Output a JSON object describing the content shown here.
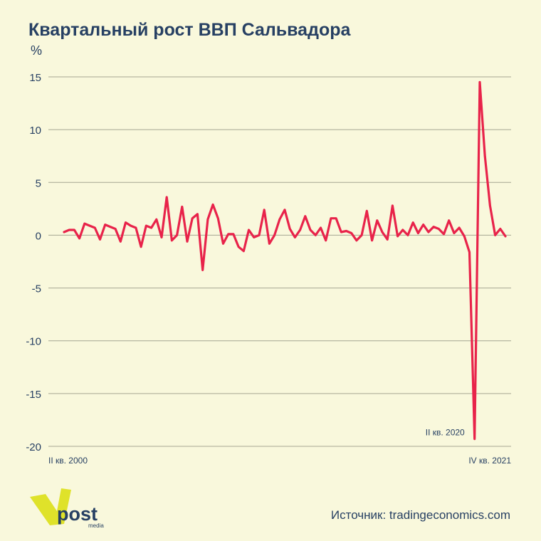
{
  "title": "Квартальный рост ВВП Сальвадора",
  "unit": "%",
  "source": "Источник: tradingeconomics.com",
  "logo": {
    "word": "post",
    "sub": "media",
    "accent": "#dfe22a",
    "text_color": "#274063"
  },
  "colors": {
    "line": "#e8234a",
    "grid": "#a6a692",
    "text": "#274063",
    "background": "#f9f8dc"
  },
  "chart_data": {
    "type": "line",
    "title": "Квартальный рост ВВП Сальвадора",
    "ylabel": "%",
    "ylim": [
      -20,
      15
    ],
    "yticks": [
      15,
      10,
      5,
      0,
      -5,
      -10,
      -15,
      -20
    ],
    "grid": true,
    "legend": "none",
    "x_labels": [
      {
        "text": "II кв. 2000",
        "index": 0
      },
      {
        "text": "IV кв. 2021",
        "index": 86
      }
    ],
    "annotations": [
      {
        "text": "II кв. 2020",
        "index": 80
      }
    ],
    "series": [
      {
        "values": [
          0.3,
          0.5,
          0.5,
          -0.3,
          1.1,
          0.9,
          0.7,
          -0.4,
          1.0,
          0.8,
          0.6,
          -0.6,
          1.2,
          0.9,
          0.7,
          -1.1,
          0.9,
          0.7,
          1.5,
          -0.2,
          3.6,
          -0.5,
          0.0,
          2.7,
          -0.6,
          1.6,
          2.0,
          -3.3,
          1.5,
          2.9,
          1.6,
          -0.8,
          0.1,
          0.1,
          -1.1,
          -1.5,
          0.5,
          -0.2,
          0.0,
          2.4,
          -0.8,
          0.0,
          1.5,
          2.4,
          0.6,
          -0.2,
          0.5,
          1.8,
          0.5,
          0.0,
          0.7,
          -0.5,
          1.6,
          1.6,
          0.3,
          0.4,
          0.2,
          -0.5,
          0.0,
          2.3,
          -0.5,
          1.4,
          0.3,
          -0.4,
          2.8,
          -0.1,
          0.5,
          0.0,
          1.2,
          0.2,
          1.0,
          0.3,
          0.8,
          0.6,
          0.1,
          1.4,
          0.2,
          0.7,
          -0.1,
          -1.6,
          -19.3,
          14.5,
          7.5,
          2.8,
          0.0,
          0.6,
          -0.1
        ]
      }
    ]
  }
}
